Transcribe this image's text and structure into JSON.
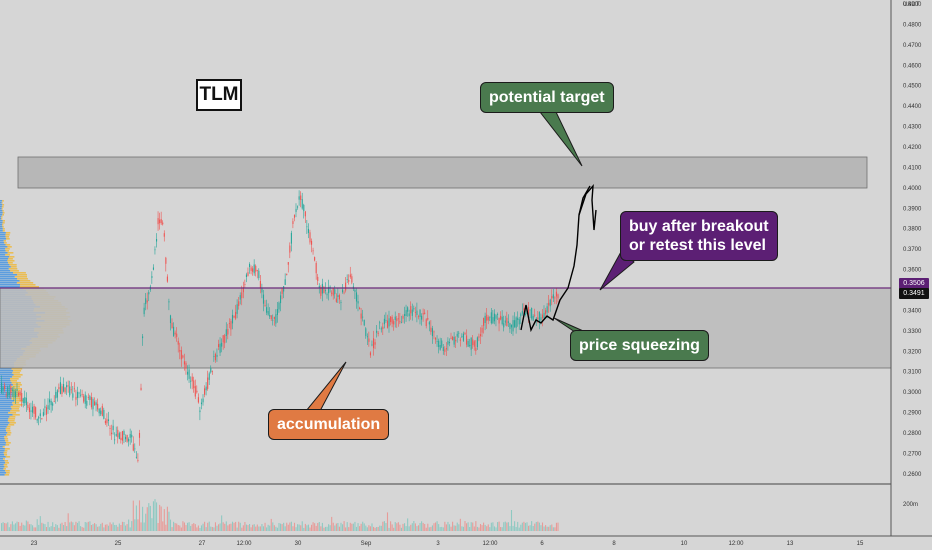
{
  "symbol": "TLM",
  "currency": "USDT",
  "annotations": {
    "target": "potential target",
    "breakout": "buy after breakout\nor retest this level",
    "squeeze": "price squeezing",
    "accumulation": "accumulation"
  },
  "colors": {
    "up": "#26a69a",
    "down": "#ef5350",
    "green_box": "#4a7a4e",
    "purple_box": "#5c1f74",
    "orange_box": "#e07a43",
    "resistance_line": "#6b2a7a"
  },
  "price_axis": {
    "ticks": [
      "0.5000",
      "0.4900",
      "0.4800",
      "0.4700",
      "0.4600",
      "0.4500",
      "0.4400",
      "0.4300",
      "0.4200",
      "0.4100",
      "0.4000",
      "0.3900",
      "0.3800",
      "0.3700",
      "0.3600",
      "0.3500",
      "0.3400",
      "0.3300",
      "0.3200",
      "0.3100",
      "0.3000",
      "0.2900",
      "0.2800",
      "0.2700",
      "0.2600"
    ],
    "current_price": "0.3491",
    "line_price": "0.3506"
  },
  "volume_axis": {
    "label": "200m"
  },
  "time_axis": {
    "labels": [
      "23",
      "25",
      "27",
      "12:00",
      "30",
      "Sep",
      "3",
      "12:00",
      "6",
      "8",
      "10",
      "12:00",
      "13",
      "15"
    ]
  },
  "chart_data": {
    "type": "candlestick",
    "ylim": [
      0.254,
      0.5
    ],
    "zones": [
      {
        "name": "target",
        "low": 0.4,
        "high": 0.4155
      },
      {
        "name": "range",
        "low": 0.3115,
        "high": 0.3506
      }
    ]
  }
}
